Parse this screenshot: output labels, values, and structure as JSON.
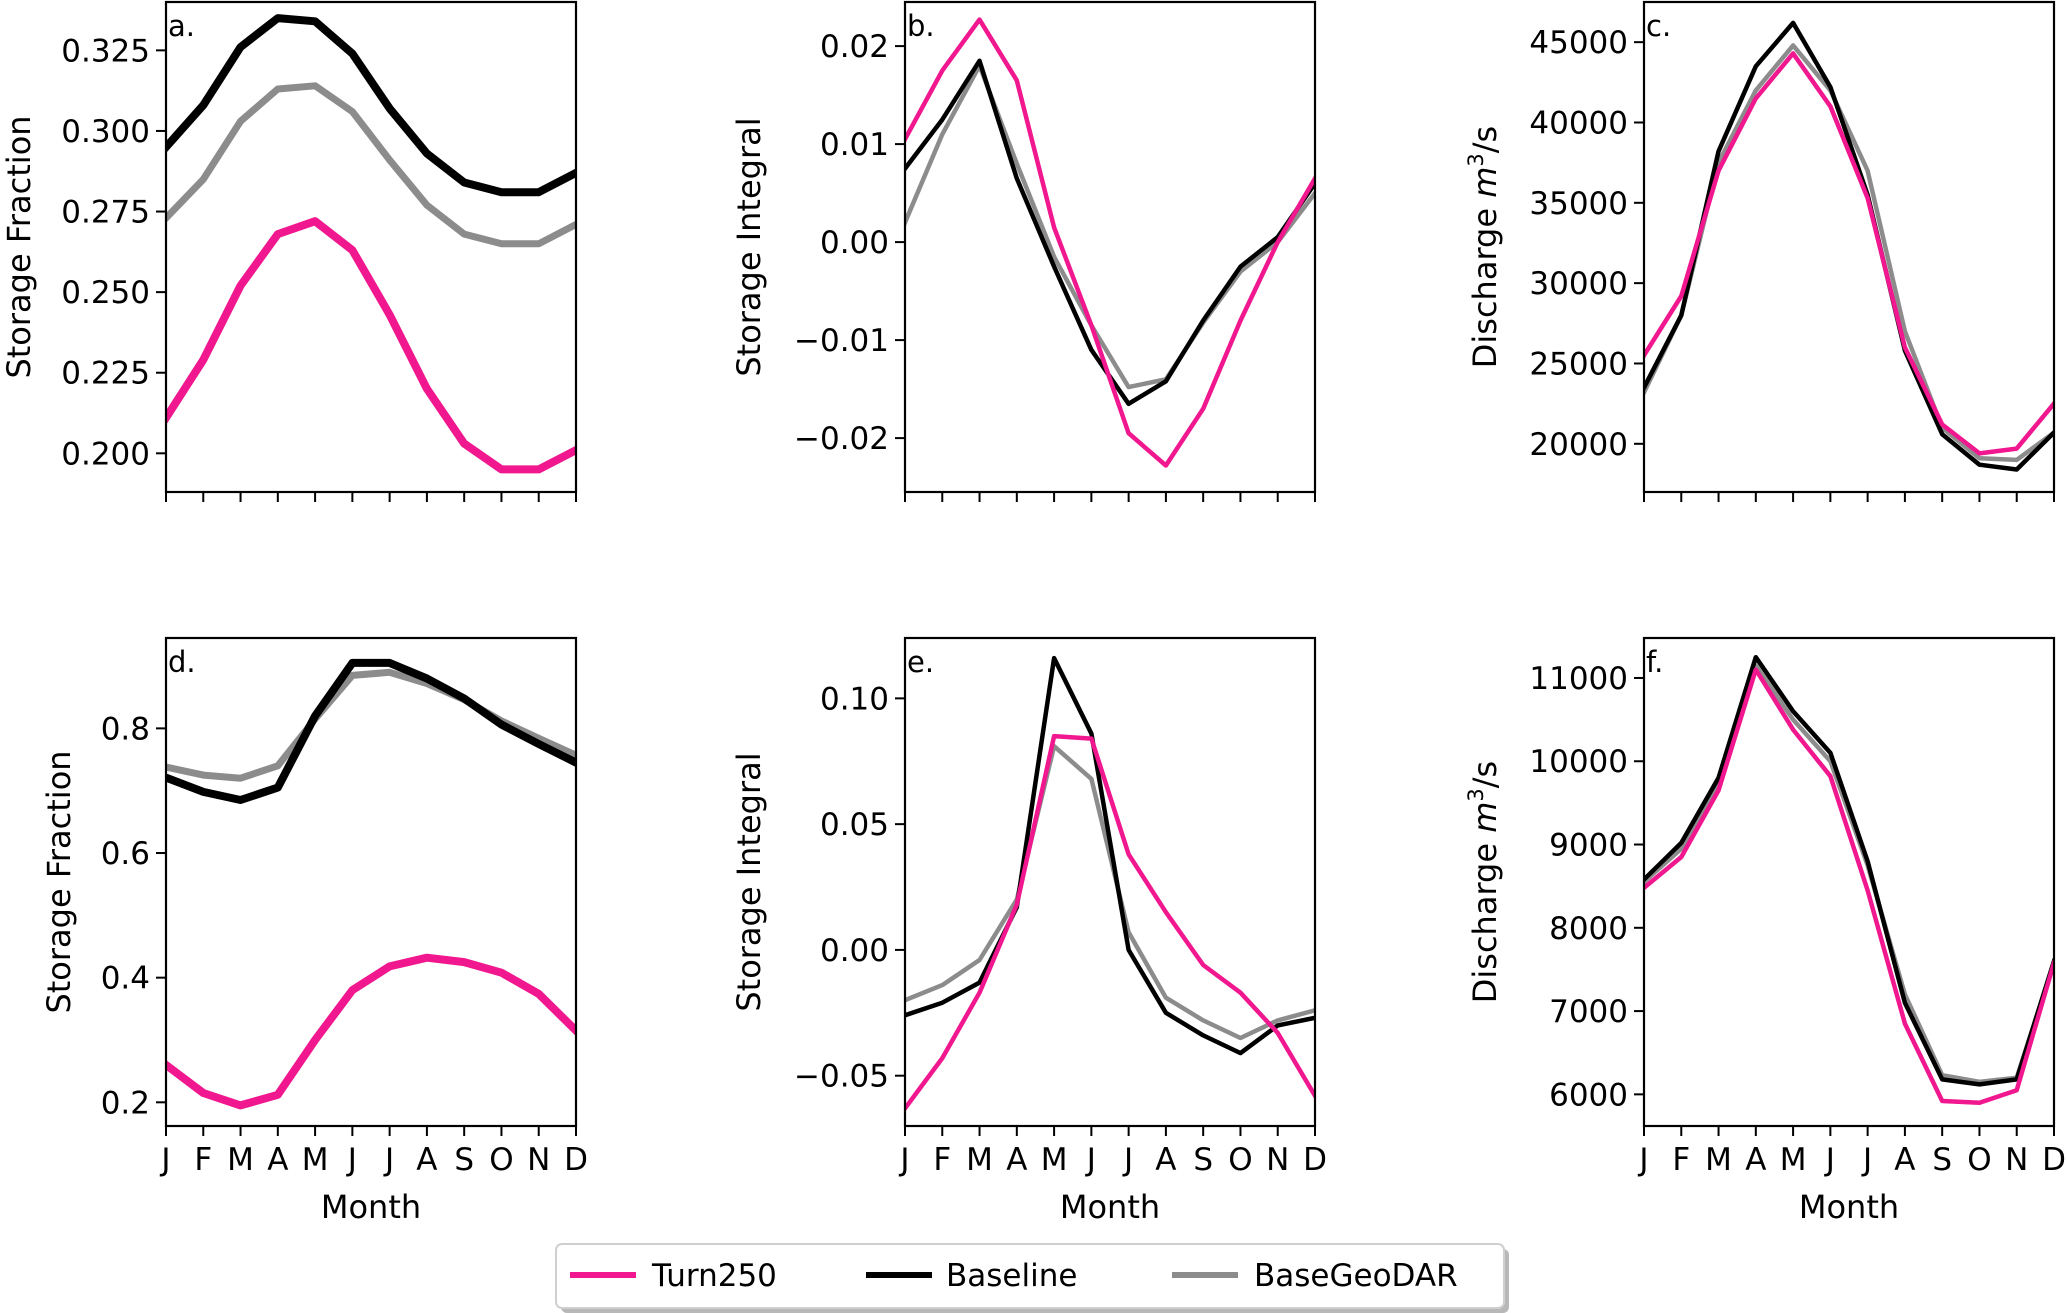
{
  "colors": {
    "Turn250": "#f0178f",
    "Baseline": "#000000",
    "BaseGeoDAR": "#8c8c8c"
  },
  "legend": {
    "placement": "bottom-center",
    "items": [
      "Turn250",
      "Baseline",
      "BaseGeoDAR"
    ]
  },
  "chart_data": [
    {
      "type": "line",
      "panel_label": "a.",
      "categories": [
        "J",
        "F",
        "M",
        "A",
        "M",
        "J",
        "J",
        "A",
        "S",
        "O",
        "N",
        "D"
      ],
      "xlabel": "",
      "ylabel": "Storage Fraction",
      "ylim": [
        0.188,
        0.34
      ],
      "yticks": [
        "0.200",
        "0.225",
        "0.250",
        "0.275",
        "0.300",
        "0.325"
      ],
      "show_xticklabels": false,
      "series": [
        {
          "name": "Turn250",
          "values": [
            0.211,
            0.229,
            0.252,
            0.268,
            0.272,
            0.263,
            0.243,
            0.22,
            0.203,
            0.195,
            0.195,
            0.201
          ]
        },
        {
          "name": "Baseline",
          "values": [
            0.295,
            0.308,
            0.326,
            0.335,
            0.334,
            0.324,
            0.307,
            0.293,
            0.284,
            0.281,
            0.281,
            0.287
          ]
        },
        {
          "name": "BaseGeoDAR",
          "values": [
            0.273,
            0.285,
            0.303,
            0.313,
            0.314,
            0.306,
            0.291,
            0.277,
            0.268,
            0.265,
            0.265,
            0.271
          ]
        }
      ]
    },
    {
      "type": "line",
      "panel_label": "b.",
      "categories": [
        "J",
        "F",
        "M",
        "A",
        "M",
        "J",
        "J",
        "A",
        "S",
        "O",
        "N",
        "D"
      ],
      "xlabel": "",
      "ylabel": "Storage Integral",
      "ylim": [
        -0.0255,
        0.0245
      ],
      "yticks": [
        "−0.02",
        "−0.01",
        "0.00",
        "0.01",
        "0.02"
      ],
      "show_xticklabels": false,
      "series": [
        {
          "name": "Turn250",
          "values": [
            0.0105,
            0.0175,
            0.0227,
            0.0165,
            0.0015,
            -0.0085,
            -0.0195,
            -0.0228,
            -0.017,
            -0.008,
            0.0,
            0.0065
          ]
        },
        {
          "name": "Baseline",
          "values": [
            0.0075,
            0.0125,
            0.0185,
            0.0065,
            -0.0025,
            -0.011,
            -0.0165,
            -0.0142,
            -0.008,
            -0.0025,
            0.0005,
            0.006
          ]
        },
        {
          "name": "BaseGeoDAR",
          "values": [
            0.002,
            0.011,
            0.018,
            0.008,
            -0.0015,
            -0.0085,
            -0.0148,
            -0.014,
            -0.0082,
            -0.003,
            0.0,
            0.005
          ]
        }
      ]
    },
    {
      "type": "line",
      "panel_label": "c.",
      "categories": [
        "J",
        "F",
        "M",
        "A",
        "M",
        "J",
        "J",
        "A",
        "S",
        "O",
        "N",
        "D"
      ],
      "xlabel": "",
      "ylabel": "Discharge m³/s",
      "ylim": [
        17000,
        47500
      ],
      "yticks": [
        "20000",
        "25000",
        "30000",
        "35000",
        "40000",
        "45000"
      ],
      "show_xticklabels": false,
      "series": [
        {
          "name": "Turn250",
          "values": [
            25500,
            29200,
            37000,
            41500,
            44300,
            41000,
            35300,
            26000,
            21200,
            19400,
            19700,
            22500
          ]
        },
        {
          "name": "Baseline",
          "values": [
            23500,
            28000,
            38200,
            43500,
            46200,
            42200,
            35500,
            25800,
            20600,
            18700,
            18400,
            20700
          ]
        },
        {
          "name": "BaseGeoDAR",
          "values": [
            23200,
            28000,
            37500,
            42000,
            44800,
            42000,
            37000,
            27000,
            21000,
            19100,
            19000,
            20700
          ]
        }
      ]
    },
    {
      "type": "line",
      "panel_label": "d.",
      "categories": [
        "J",
        "F",
        "M",
        "A",
        "M",
        "J",
        "J",
        "A",
        "S",
        "O",
        "N",
        "D"
      ],
      "xlabel": "Month",
      "ylabel": "Storage Fraction",
      "ylim": [
        0.162,
        0.945
      ],
      "yticks": [
        "0.2",
        "0.4",
        "0.6",
        "0.8"
      ],
      "show_xticklabels": true,
      "series": [
        {
          "name": "Turn250",
          "values": [
            0.26,
            0.215,
            0.195,
            0.212,
            0.3,
            0.38,
            0.418,
            0.432,
            0.425,
            0.408,
            0.374,
            0.315
          ]
        },
        {
          "name": "Baseline",
          "values": [
            0.721,
            0.698,
            0.685,
            0.705,
            0.82,
            0.905,
            0.905,
            0.88,
            0.848,
            0.806,
            0.775,
            0.745
          ]
        },
        {
          "name": "BaseGeoDAR",
          "values": [
            0.738,
            0.725,
            0.72,
            0.74,
            0.815,
            0.885,
            0.89,
            0.872,
            0.846,
            0.812,
            0.784,
            0.757
          ]
        }
      ]
    },
    {
      "type": "line",
      "panel_label": "e.",
      "categories": [
        "J",
        "F",
        "M",
        "A",
        "M",
        "J",
        "J",
        "A",
        "S",
        "O",
        "N",
        "D"
      ],
      "xlabel": "Month",
      "ylabel": "Storage Integral",
      "ylim": [
        -0.07,
        0.124
      ],
      "yticks": [
        "−0.05",
        "0.00",
        "0.05",
        "0.10"
      ],
      "show_xticklabels": true,
      "series": [
        {
          "name": "Turn250",
          "values": [
            -0.063,
            -0.043,
            -0.017,
            0.018,
            0.085,
            0.084,
            0.038,
            0.015,
            -0.006,
            -0.017,
            -0.033,
            -0.058
          ]
        },
        {
          "name": "Baseline",
          "values": [
            -0.026,
            -0.021,
            -0.013,
            0.017,
            0.116,
            0.086,
            0.0,
            -0.025,
            -0.034,
            -0.041,
            -0.03,
            -0.027
          ]
        },
        {
          "name": "BaseGeoDAR",
          "values": [
            -0.02,
            -0.014,
            -0.004,
            0.02,
            0.081,
            0.068,
            0.007,
            -0.019,
            -0.028,
            -0.035,
            -0.028,
            -0.024
          ]
        }
      ]
    },
    {
      "type": "line",
      "panel_label": "f.",
      "categories": [
        "J",
        "F",
        "M",
        "A",
        "M",
        "J",
        "J",
        "A",
        "S",
        "O",
        "N",
        "D"
      ],
      "xlabel": "Month",
      "ylabel": "Discharge m³/s",
      "ylim": [
        5620,
        11480
      ],
      "yticks": [
        "6000",
        "7000",
        "8000",
        "9000",
        "10000",
        "11000"
      ],
      "show_xticklabels": true,
      "series": [
        {
          "name": "Turn250",
          "values": [
            8480,
            8850,
            9650,
            11100,
            10380,
            9820,
            8450,
            6850,
            5920,
            5900,
            6050,
            7580
          ]
        },
        {
          "name": "Baseline",
          "values": [
            8580,
            9020,
            9800,
            11250,
            10600,
            10100,
            8800,
            7100,
            6180,
            6120,
            6180,
            7600
          ]
        },
        {
          "name": "BaseGeoDAR",
          "values": [
            8550,
            8950,
            9750,
            11150,
            10500,
            10000,
            8750,
            7200,
            6230,
            6150,
            6200,
            7580
          ]
        }
      ]
    }
  ]
}
